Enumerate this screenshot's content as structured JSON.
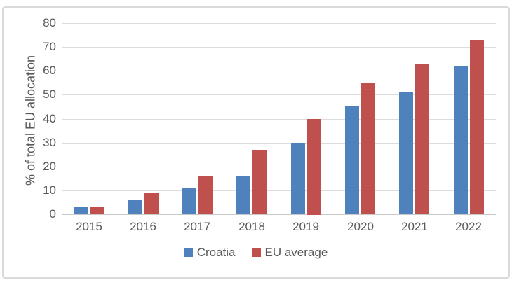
{
  "chart_data": {
    "type": "bar",
    "title": "",
    "categories": [
      "2015",
      "2016",
      "2017",
      "2018",
      "2019",
      "2020",
      "2021",
      "2022"
    ],
    "series": [
      {
        "name": "Croatia",
        "color": "#4F81BD",
        "values": [
          3,
          6,
          11,
          16,
          30,
          45,
          51,
          62
        ]
      },
      {
        "name": "EU average",
        "color": "#C0504D",
        "values": [
          3,
          9,
          16,
          27,
          40,
          55,
          63,
          73
        ]
      }
    ],
    "xlabel": "",
    "ylabel": "% of total EU allocation",
    "ylim": [
      0,
      80
    ],
    "yticks": [
      0,
      10,
      20,
      30,
      40,
      50,
      60,
      70,
      80
    ],
    "grid": "horizontal",
    "legend_position": "bottom",
    "legend_labels": [
      "Croatia",
      "EU average"
    ],
    "colors": {
      "croatia_bar": "#4F81BD",
      "eu_average_bar": "#C0504D",
      "grid": "#DCDCDC",
      "axis": "#C9C9C9",
      "text": "#595959",
      "frame": "#D9D9D9",
      "background": "#FFFFFF"
    }
  }
}
